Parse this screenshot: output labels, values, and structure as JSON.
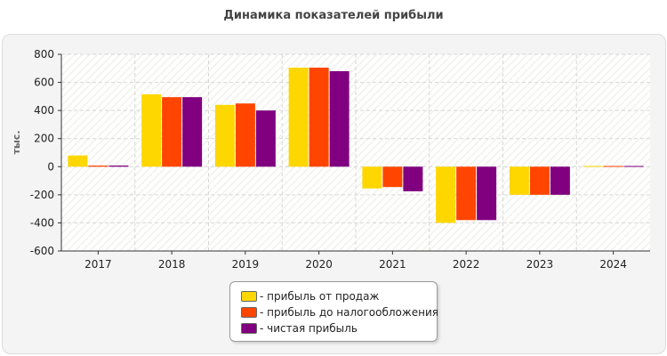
{
  "chart_data": {
    "type": "bar",
    "title": "Динамика показателей прибыли",
    "ylabel": "тыс.",
    "xlabel": "",
    "ylim": [
      -600,
      800
    ],
    "yticks": [
      800,
      600,
      400,
      200,
      0,
      -200,
      -400,
      -600
    ],
    "grid": true,
    "legend_position": "bottom",
    "categories": [
      "2017",
      "2018",
      "2019",
      "2020",
      "2021",
      "2022",
      "2023",
      "2024"
    ],
    "series": [
      {
        "name": "- прибыль от продаж",
        "color": "#FFD700",
        "values": [
          80,
          515,
          440,
          705,
          -155,
          -400,
          -200,
          5
        ]
      },
      {
        "name": "- прибыль до налогообложения",
        "color": "#FF4500",
        "values": [
          8,
          495,
          450,
          705,
          -145,
          -380,
          -200,
          5
        ]
      },
      {
        "name": "- чистая прибыль",
        "color": "#800080",
        "values": [
          8,
          495,
          400,
          680,
          -175,
          -380,
          -200,
          5
        ]
      }
    ]
  }
}
